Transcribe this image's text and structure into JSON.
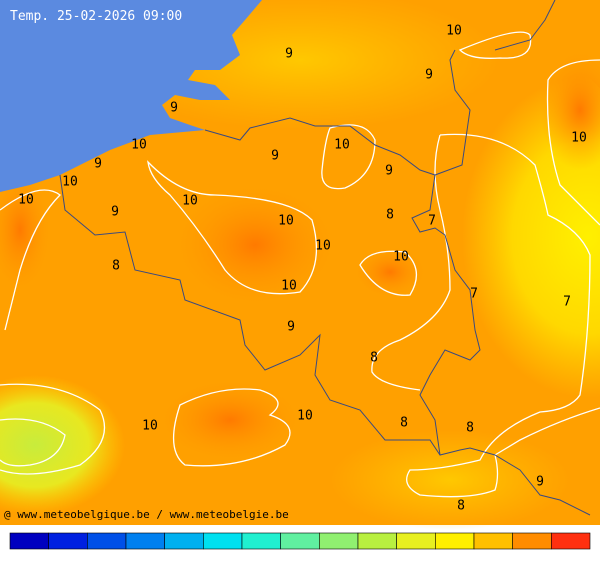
{
  "header": {
    "title": "Temp. 25-02-2026 09:00"
  },
  "labels": [
    9,
    10,
    9,
    9,
    10,
    10,
    9,
    10,
    9,
    10,
    9,
    10,
    9,
    10,
    8,
    7,
    10,
    10,
    10,
    8,
    10,
    7,
    7,
    9,
    8,
    10,
    10,
    8,
    8,
    9,
    8
  ],
  "footer": {
    "credit": "@ www.meteobelgique.be / www.meteobelgie.be"
  }
}
